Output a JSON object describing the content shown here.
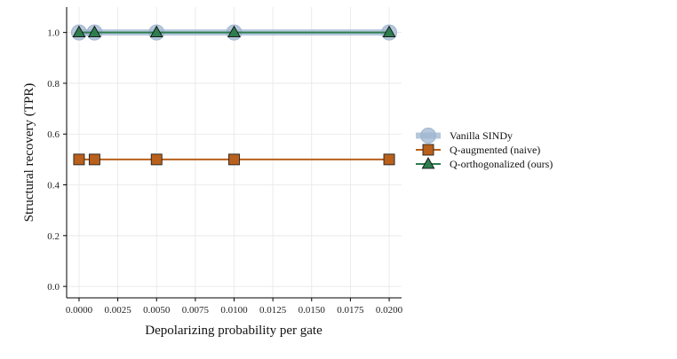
{
  "chart_data": {
    "type": "line",
    "xlabel": "Depolarizing probability per gate",
    "ylabel": "Structural recovery (TPR)",
    "xlim": [
      -0.0008,
      0.0208
    ],
    "ylim": [
      -0.045,
      1.1
    ],
    "x_ticks": [
      0.0,
      0.0025,
      0.005,
      0.0075,
      0.01,
      0.0125,
      0.015,
      0.0175,
      0.02
    ],
    "x_tick_labels": [
      "0.0000",
      "0.0025",
      "0.0050",
      "0.0075",
      "0.0100",
      "0.0125",
      "0.0150",
      "0.0175",
      "0.0200"
    ],
    "y_ticks": [
      0.0,
      0.2,
      0.4,
      0.6,
      0.8,
      1.0
    ],
    "y_tick_labels": [
      "0.0",
      "0.2",
      "0.4",
      "0.6",
      "0.8",
      "1.0"
    ],
    "grid": true,
    "legend_position": "right",
    "x": [
      0.0,
      0.001,
      0.005,
      0.01,
      0.02
    ],
    "series": [
      {
        "name": "Vanilla SINDy",
        "values": [
          1.0,
          1.0,
          1.0,
          1.0,
          1.0
        ],
        "color": "#9fb6d0",
        "marker": "circle"
      },
      {
        "name": "Q-augmented (naive)",
        "values": [
          0.5,
          0.5,
          0.5,
          0.5,
          0.5
        ],
        "color": "#b8601c",
        "marker": "square"
      },
      {
        "name": "Q-orthogonalized (ours)",
        "values": [
          1.0,
          1.0,
          1.0,
          1.0,
          1.0
        ],
        "color": "#2e7d4f",
        "marker": "triangle"
      }
    ]
  }
}
